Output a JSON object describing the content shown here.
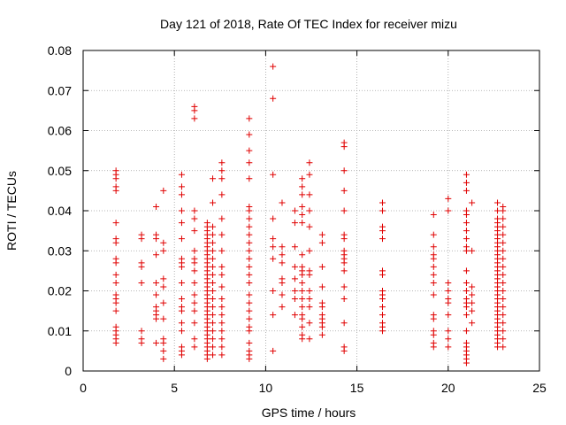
{
  "chart_data": {
    "type": "scatter",
    "title": "Day 121 of 2018, Rate Of TEC Index for receiver mizu",
    "xlabel": "GPS time / hours",
    "ylabel": "ROTI / TECUs",
    "xlim": [
      0,
      25
    ],
    "ylim": [
      0,
      0.08
    ],
    "xticks": [
      "0",
      "5",
      "10",
      "15",
      "20",
      "25"
    ],
    "yticks": [
      "0",
      "0.01",
      "0.02",
      "0.03",
      "0.04",
      "0.05",
      "0.06",
      "0.07",
      "0.08"
    ],
    "grid": true,
    "marker": "plus",
    "color": "#e00000",
    "clusters": [
      {
        "x": 1.8,
        "y": [
          0.007,
          0.008,
          0.009,
          0.01,
          0.011,
          0.015,
          0.017,
          0.018,
          0.019,
          0.022,
          0.024,
          0.027,
          0.028,
          0.032,
          0.033,
          0.037,
          0.045,
          0.046,
          0.048,
          0.049,
          0.05
        ]
      },
      {
        "x": 3.2,
        "y": [
          0.007,
          0.008,
          0.01,
          0.022,
          0.026,
          0.027,
          0.033,
          0.034
        ]
      },
      {
        "x": 4.0,
        "y": [
          0.007,
          0.013,
          0.014,
          0.015,
          0.016,
          0.019,
          0.022,
          0.029,
          0.033,
          0.034,
          0.041
        ]
      },
      {
        "x": 4.4,
        "y": [
          0.003,
          0.005,
          0.007,
          0.008,
          0.013,
          0.017,
          0.021,
          0.023,
          0.03,
          0.032,
          0.045
        ]
      },
      {
        "x": 5.4,
        "y": [
          0.004,
          0.005,
          0.006,
          0.01,
          0.012,
          0.015,
          0.016,
          0.018,
          0.022,
          0.026,
          0.027,
          0.028,
          0.033,
          0.037,
          0.04,
          0.044,
          0.046,
          0.049
        ]
      },
      {
        "x": 6.1,
        "y": [
          0.006,
          0.008,
          0.012,
          0.015,
          0.017,
          0.019,
          0.022,
          0.025,
          0.027,
          0.028,
          0.03,
          0.035,
          0.038,
          0.04,
          0.063,
          0.065,
          0.066
        ]
      },
      {
        "x": 6.8,
        "y": [
          0.003,
          0.004,
          0.005,
          0.006,
          0.007,
          0.008,
          0.009,
          0.01,
          0.011,
          0.012,
          0.013,
          0.014,
          0.015,
          0.016,
          0.017,
          0.018,
          0.019,
          0.02,
          0.021,
          0.022,
          0.023,
          0.024,
          0.025,
          0.026,
          0.027,
          0.028,
          0.029,
          0.03,
          0.031,
          0.032,
          0.033,
          0.034,
          0.035,
          0.036,
          0.037
        ]
      },
      {
        "x": 7.1,
        "y": [
          0.004,
          0.006,
          0.008,
          0.01,
          0.012,
          0.014,
          0.016,
          0.018,
          0.02,
          0.022,
          0.024,
          0.026,
          0.028,
          0.03,
          0.032,
          0.034,
          0.036,
          0.042,
          0.048
        ]
      },
      {
        "x": 7.6,
        "y": [
          0.004,
          0.006,
          0.008,
          0.01,
          0.012,
          0.014,
          0.016,
          0.018,
          0.021,
          0.024,
          0.026,
          0.03,
          0.034,
          0.038,
          0.044,
          0.048,
          0.05,
          0.052
        ]
      },
      {
        "x": 9.1,
        "y": [
          0.003,
          0.004,
          0.005,
          0.007,
          0.01,
          0.011,
          0.013,
          0.015,
          0.017,
          0.019,
          0.022,
          0.024,
          0.026,
          0.028,
          0.03,
          0.032,
          0.034,
          0.036,
          0.038,
          0.04,
          0.041,
          0.048,
          0.052,
          0.055,
          0.059,
          0.063
        ]
      },
      {
        "x": 10.4,
        "y": [
          0.005,
          0.014,
          0.02,
          0.028,
          0.031,
          0.033,
          0.038,
          0.049,
          0.068,
          0.076
        ]
      },
      {
        "x": 10.9,
        "y": [
          0.016,
          0.019,
          0.022,
          0.023,
          0.027,
          0.029,
          0.031,
          0.042
        ]
      },
      {
        "x": 11.6,
        "y": [
          0.014,
          0.018,
          0.02,
          0.023,
          0.026,
          0.031,
          0.037,
          0.04
        ]
      },
      {
        "x": 12.0,
        "y": [
          0.008,
          0.009,
          0.011,
          0.013,
          0.014,
          0.016,
          0.018,
          0.02,
          0.022,
          0.024,
          0.025,
          0.026,
          0.029,
          0.037,
          0.039,
          0.041,
          0.044,
          0.046,
          0.048
        ]
      },
      {
        "x": 12.4,
        "y": [
          0.008,
          0.012,
          0.016,
          0.018,
          0.02,
          0.024,
          0.025,
          0.03,
          0.036,
          0.04,
          0.044,
          0.049,
          0.052
        ]
      },
      {
        "x": 13.1,
        "y": [
          0.009,
          0.011,
          0.012,
          0.013,
          0.014,
          0.016,
          0.017,
          0.021,
          0.026,
          0.032,
          0.034
        ]
      },
      {
        "x": 14.3,
        "y": [
          0.005,
          0.006,
          0.012,
          0.018,
          0.021,
          0.025,
          0.027,
          0.028,
          0.029,
          0.03,
          0.033,
          0.034,
          0.04,
          0.045,
          0.05,
          0.056,
          0.057
        ]
      },
      {
        "x": 16.4,
        "y": [
          0.01,
          0.011,
          0.012,
          0.014,
          0.016,
          0.018,
          0.019,
          0.02,
          0.024,
          0.025,
          0.033,
          0.035,
          0.036,
          0.04,
          0.042
        ]
      },
      {
        "x": 19.2,
        "y": [
          0.006,
          0.007,
          0.009,
          0.01,
          0.013,
          0.014,
          0.019,
          0.022,
          0.024,
          0.026,
          0.028,
          0.029,
          0.031,
          0.034,
          0.039
        ]
      },
      {
        "x": 20.0,
        "y": [
          0.006,
          0.008,
          0.01,
          0.014,
          0.017,
          0.018,
          0.02,
          0.022,
          0.04,
          0.043
        ]
      },
      {
        "x": 21.0,
        "y": [
          0.002,
          0.003,
          0.004,
          0.005,
          0.006,
          0.007,
          0.01,
          0.014,
          0.016,
          0.017,
          0.018,
          0.02,
          0.022,
          0.025,
          0.03,
          0.031,
          0.033,
          0.035,
          0.037,
          0.039,
          0.04,
          0.045,
          0.047,
          0.049
        ]
      },
      {
        "x": 21.3,
        "y": [
          0.012,
          0.015,
          0.017,
          0.019,
          0.021,
          0.03,
          0.042
        ]
      },
      {
        "x": 22.7,
        "y": [
          0.006,
          0.007,
          0.008,
          0.009,
          0.01,
          0.011,
          0.012,
          0.013,
          0.014,
          0.015,
          0.016,
          0.017,
          0.018,
          0.019,
          0.02,
          0.021,
          0.022,
          0.023,
          0.024,
          0.025,
          0.026,
          0.027,
          0.028,
          0.029,
          0.03,
          0.031,
          0.032,
          0.033,
          0.034,
          0.035,
          0.036,
          0.037,
          0.038,
          0.04,
          0.042
        ]
      },
      {
        "x": 23.0,
        "y": [
          0.006,
          0.008,
          0.01,
          0.012,
          0.014,
          0.016,
          0.018,
          0.02,
          0.022,
          0.024,
          0.026,
          0.028,
          0.03,
          0.032,
          0.034,
          0.036,
          0.038,
          0.04,
          0.041
        ]
      }
    ]
  }
}
